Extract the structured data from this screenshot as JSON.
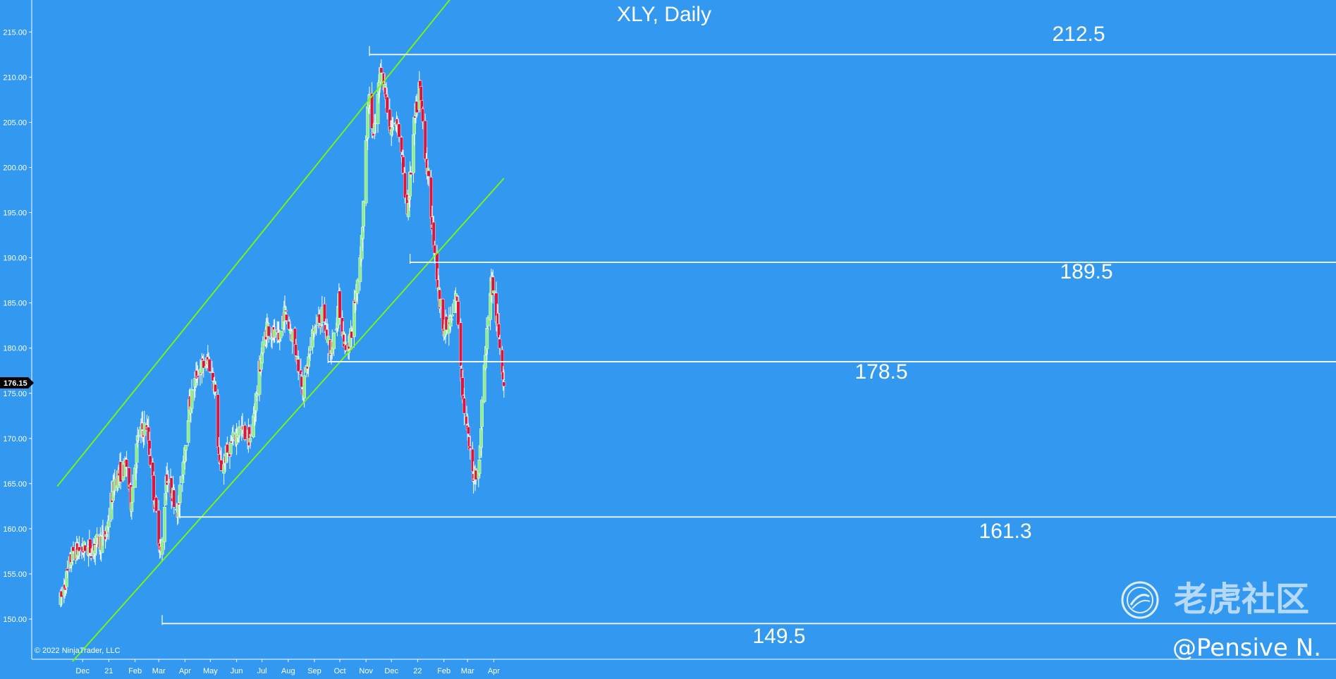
{
  "chart_data": {
    "type": "candlestick",
    "title": "XLY, Daily",
    "symbol": "XLY",
    "interval": "Daily",
    "ylim": [
      146.0,
      218.0
    ],
    "y_ticks": [
      150.0,
      155.0,
      160.0,
      165.0,
      170.0,
      175.0,
      180.0,
      185.0,
      190.0,
      195.0,
      200.0,
      205.0,
      210.0,
      215.0
    ],
    "x_ticks": [
      {
        "label": "Dec",
        "date": "2020-12-01"
      },
      {
        "label": "21",
        "date": "2021-01-01"
      },
      {
        "label": "Feb",
        "date": "2021-02-01"
      },
      {
        "label": "Mar",
        "date": "2021-03-01"
      },
      {
        "label": "Apr",
        "date": "2021-04-01"
      },
      {
        "label": "May",
        "date": "2021-05-01"
      },
      {
        "label": "Jun",
        "date": "2021-06-01"
      },
      {
        "label": "Jul",
        "date": "2021-07-01"
      },
      {
        "label": "Aug",
        "date": "2021-08-01"
      },
      {
        "label": "Sep",
        "date": "2021-09-01"
      },
      {
        "label": "Oct",
        "date": "2021-10-01"
      },
      {
        "label": "Nov",
        "date": "2021-11-01"
      },
      {
        "label": "Dec",
        "date": "2021-12-01"
      },
      {
        "label": "22",
        "date": "2022-01-01"
      },
      {
        "label": "Feb",
        "date": "2022-02-01"
      },
      {
        "label": "Mar",
        "date": "2022-03-01"
      },
      {
        "label": "Apr",
        "date": "2022-04-01"
      }
    ],
    "x_range": [
      "2020-11-05",
      "2022-04-13"
    ],
    "last_price": "176.15",
    "close_path": [
      [
        "2020-11-05",
        152.0
      ],
      [
        "2020-11-20",
        157.5
      ],
      [
        "2020-12-10",
        157.8
      ],
      [
        "2020-12-28",
        159.0
      ],
      [
        "2021-01-08",
        165.5
      ],
      [
        "2021-01-22",
        167.0
      ],
      [
        "2021-01-27",
        163.0
      ],
      [
        "2021-02-05",
        170.5
      ],
      [
        "2021-02-15",
        171.5
      ],
      [
        "2021-02-24",
        163.0
      ],
      [
        "2021-03-04",
        157.0
      ],
      [
        "2021-03-10",
        166.0
      ],
      [
        "2021-03-24",
        162.0
      ],
      [
        "2021-04-05",
        173.0
      ],
      [
        "2021-04-16",
        177.5
      ],
      [
        "2021-04-29",
        178.5
      ],
      [
        "2021-05-06",
        176.0
      ],
      [
        "2021-05-12",
        166.5
      ],
      [
        "2021-05-24",
        169.0
      ],
      [
        "2021-06-04",
        171.0
      ],
      [
        "2021-06-18",
        170.0
      ],
      [
        "2021-06-30",
        179.0
      ],
      [
        "2021-07-07",
        182.5
      ],
      [
        "2021-07-21",
        180.5
      ],
      [
        "2021-07-27",
        184.0
      ],
      [
        "2021-08-06",
        181.5
      ],
      [
        "2021-08-19",
        175.5
      ],
      [
        "2021-08-31",
        182.0
      ],
      [
        "2021-09-10",
        183.5
      ],
      [
        "2021-09-21",
        179.5
      ],
      [
        "2021-09-30",
        185.0
      ],
      [
        "2021-10-08",
        179.5
      ],
      [
        "2021-10-15",
        182.0
      ],
      [
        "2021-10-27",
        192.0
      ],
      [
        "2021-11-04",
        208.0
      ],
      [
        "2021-11-10",
        203.0
      ],
      [
        "2021-11-19",
        211.5
      ],
      [
        "2021-11-30",
        204.0
      ],
      [
        "2021-12-08",
        205.5
      ],
      [
        "2021-12-20",
        195.0
      ],
      [
        "2021-12-28",
        204.5
      ],
      [
        "2022-01-03",
        209.0
      ],
      [
        "2022-01-13",
        199.0
      ],
      [
        "2022-01-27",
        185.0
      ],
      [
        "2022-02-02",
        182.0
      ],
      [
        "2022-02-10",
        183.0
      ],
      [
        "2022-02-16",
        186.0
      ],
      [
        "2022-02-24",
        174.0
      ],
      [
        "2022-03-07",
        166.0
      ],
      [
        "2022-03-15",
        167.0
      ],
      [
        "2022-03-18",
        174.0
      ],
      [
        "2022-03-29",
        188.0
      ],
      [
        "2022-04-06",
        182.0
      ],
      [
        "2022-04-13",
        176.5
      ]
    ],
    "horizontal_levels": [
      {
        "label": "212.5",
        "value": 212.5,
        "from": "2021-11-05"
      },
      {
        "label": "189.5",
        "value": 189.5,
        "from": "2021-12-23"
      },
      {
        "label": "178.5",
        "value": 178.5,
        "from": "2021-09-17"
      },
      {
        "label": "161.3",
        "value": 161.3,
        "from": "2021-03-26"
      },
      {
        "label": "149.5",
        "value": 149.5,
        "from": "2021-03-05"
      }
    ],
    "trend_lines": [
      {
        "name": "upper",
        "points": [
          [
            "2020-11-01",
            164.7
          ],
          [
            "2022-04-13",
            226.0
          ]
        ]
      },
      {
        "name": "lower",
        "points": [
          [
            "2020-11-19",
            145.3
          ],
          [
            "2022-04-13",
            198.8
          ]
        ]
      }
    ],
    "colors": {
      "background": "#3399f0",
      "up_candle": "#90ee90",
      "down_candle": "#dc143c",
      "trend_line": "#7cfc00",
      "level_line": "#ffffff"
    },
    "grid": false
  },
  "footer": {
    "copyright": "© 2022 NinjaTrader, LLC"
  },
  "watermark": {
    "brand": "老虎社区",
    "handle": "@Pensive N.",
    "logo_icon": "tiger-community-logo"
  }
}
